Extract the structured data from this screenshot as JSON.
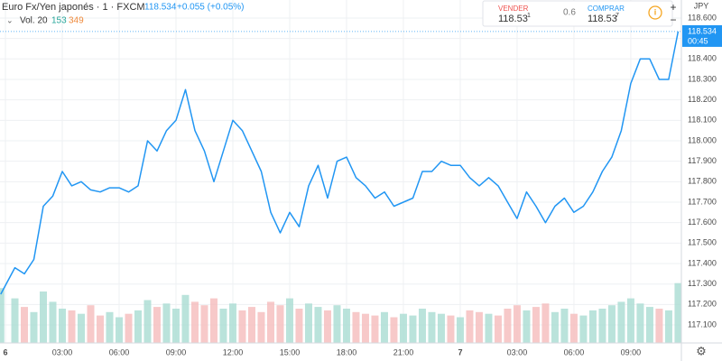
{
  "chart_data": {
    "type": "line",
    "title": "Euro Fx/Yen japonés · 1 · FXCM",
    "change": "+0.055 (+0.05%)",
    "volume_label": "Vol. 20",
    "volume_ma": 153,
    "volume_last": 349,
    "axis_unit": "JPY",
    "countdown": "00:45",
    "sell": {
      "label": "VENDER",
      "price": "118.53",
      "pip": "1"
    },
    "spread": "0.6",
    "buy": {
      "label": "COMPRAR",
      "price": "118.53",
      "pip": "7"
    },
    "x": [
      -0.25,
      0.5,
      1,
      1.5,
      2,
      2.5,
      3,
      3.5,
      4,
      4.5,
      5,
      5.5,
      6,
      6.5,
      7,
      7.5,
      8,
      8.5,
      9,
      9.5,
      10,
      10.5,
      11,
      11.5,
      12,
      12.5,
      13,
      13.5,
      14,
      14.5,
      15,
      15.5,
      16,
      16.5,
      17,
      17.5,
      18,
      18.5,
      19,
      19.5,
      20,
      20.5,
      21,
      21.5,
      22,
      22.5,
      23,
      23.5,
      24,
      24.5,
      25,
      25.5,
      26,
      26.5,
      27,
      27.5,
      28,
      28.5,
      29,
      29.5,
      30,
      30.5,
      31,
      31.5,
      32,
      32.5,
      33,
      33.5,
      34,
      34.5,
      35,
      35.5
    ],
    "series": [
      {
        "name": "Euro Fx/Yen japonés",
        "color": "#2196f3",
        "values": [
          117.25,
          117.38,
          117.35,
          117.42,
          117.68,
          117.73,
          117.85,
          117.78,
          117.8,
          117.76,
          117.75,
          117.77,
          117.77,
          117.75,
          117.78,
          118.0,
          117.95,
          118.05,
          118.1,
          118.25,
          118.05,
          117.95,
          117.8,
          117.95,
          118.1,
          118.05,
          117.95,
          117.85,
          117.65,
          117.55,
          117.65,
          117.58,
          117.78,
          117.88,
          117.72,
          117.9,
          117.92,
          117.82,
          117.78,
          117.72,
          117.75,
          117.68,
          117.7,
          117.72,
          117.85,
          117.85,
          117.9,
          117.88,
          117.88,
          117.82,
          117.78,
          117.82,
          117.78,
          117.7,
          117.62,
          117.75,
          117.68,
          117.6,
          117.68,
          117.72,
          117.65,
          117.68,
          117.75,
          117.85,
          117.92,
          118.05,
          118.28,
          118.4,
          118.4,
          118.3,
          118.3,
          118.534
        ]
      }
    ],
    "volume": {
      "ylim": [
        0,
        2000
      ],
      "up_color": "#a9dcd2",
      "down_color": "#f5bcbc",
      "values": [
        320,
        260,
        210,
        180,
        300,
        240,
        200,
        190,
        170,
        220,
        160,
        180,
        150,
        170,
        190,
        250,
        210,
        230,
        200,
        280,
        240,
        220,
        260,
        200,
        230,
        190,
        210,
        180,
        240,
        220,
        260,
        200,
        230,
        210,
        190,
        220,
        200,
        180,
        170,
        160,
        180,
        150,
        170,
        160,
        200,
        180,
        170,
        160,
        150,
        190,
        180,
        170,
        160,
        200,
        220,
        190,
        210,
        230,
        180,
        200,
        170,
        160,
        190,
        200,
        220,
        240,
        260,
        230,
        210,
        200,
        190,
        349
      ]
    },
    "xlim": [
      -0.286,
      35.67
    ],
    "xticks": [
      {
        "value": 0,
        "label": "6"
      },
      {
        "value": 3,
        "label": "03:00"
      },
      {
        "value": 6,
        "label": "06:00"
      },
      {
        "value": 9,
        "label": "09:00"
      },
      {
        "value": 12,
        "label": "12:00"
      },
      {
        "value": 15,
        "label": "15:00"
      },
      {
        "value": 18,
        "label": "18:00"
      },
      {
        "value": 21,
        "label": "21:00"
      },
      {
        "value": 24,
        "label": "7"
      },
      {
        "value": 27,
        "label": "03:00"
      },
      {
        "value": 30,
        "label": "06:00"
      },
      {
        "value": 33,
        "label": "09:00"
      }
    ],
    "ylim": [
      117.012,
      118.688
    ],
    "yticks": [
      {
        "value": 117.1,
        "label": "117.100"
      },
      {
        "value": 117.2,
        "label": "117.200"
      },
      {
        "value": 117.3,
        "label": "117.300"
      },
      {
        "value": 117.4,
        "label": "117.400"
      },
      {
        "value": 117.5,
        "label": "117.500"
      },
      {
        "value": 117.6,
        "label": "117.600"
      },
      {
        "value": 117.7,
        "label": "117.700"
      },
      {
        "value": 117.8,
        "label": "117.800"
      },
      {
        "value": 117.9,
        "label": "117.900"
      },
      {
        "value": 118.0,
        "label": "118.000"
      },
      {
        "value": 118.1,
        "label": "118.100"
      },
      {
        "value": 118.2,
        "label": "118.200"
      },
      {
        "value": 118.3,
        "label": "118.300"
      },
      {
        "value": 118.4,
        "label": "118.400"
      },
      {
        "value": 118.5,
        "label": "118.500"
      },
      {
        "value": 118.6,
        "label": "118.600"
      }
    ],
    "grid": true
  }
}
